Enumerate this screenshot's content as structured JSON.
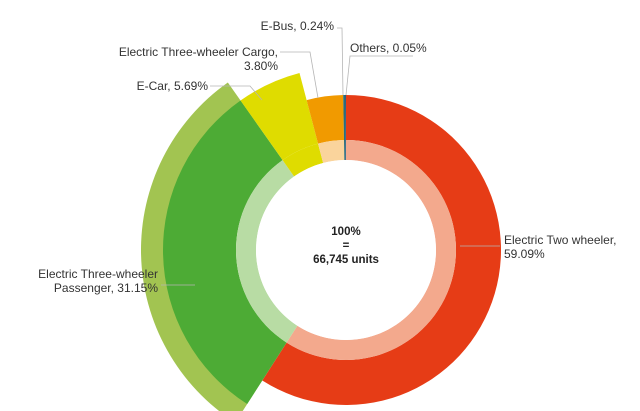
{
  "chart_data": {
    "type": "pie",
    "center": {
      "line1": "100%",
      "line2": "=",
      "line3": "66,745 units"
    },
    "slices": [
      {
        "name": "Electric Two wheeler",
        "value": 59.09,
        "label_lines": [
          "Electric Two wheeler,",
          "59.09%"
        ],
        "color_outer": "#e63c16",
        "color_inner": "#f3a98d",
        "outer_extent": "short"
      },
      {
        "name": "Electric Three-wheeler Passenger",
        "value": 31.15,
        "label_lines": [
          "Electric Three-wheeler",
          "Passenger, 31.15%"
        ],
        "color_outer": "#4dab35",
        "color_inner": "#b8dca4",
        "color_band": "#a2c451",
        "outer_extent": "tall"
      },
      {
        "name": "E-Car",
        "value": 5.69,
        "label_lines": [
          "E-Car, 5.69%"
        ],
        "color_outer": "#dfdc00",
        "color_inner": "#dfdc00",
        "outer_extent": "tall"
      },
      {
        "name": "Electric Three-wheeler Cargo",
        "value": 3.8,
        "label_lines": [
          "Electric Three-wheeler Cargo,",
          "3.80%"
        ],
        "color_outer": "#f19a00",
        "color_inner": "#fad49c",
        "outer_extent": "short"
      },
      {
        "name": "E-Bus",
        "value": 0.24,
        "label_lines": [
          "E-Bus, 0.24%"
        ],
        "color_outer": "#2b6e7a",
        "color_inner": "#2b6e7a",
        "outer_extent": "short"
      },
      {
        "name": "Others",
        "value": 0.05,
        "label_lines": [
          "Others, 0.05%"
        ],
        "color_outer": "#1f4f8a",
        "color_inner": "#1f4f8a",
        "outer_extent": "short"
      }
    ]
  }
}
